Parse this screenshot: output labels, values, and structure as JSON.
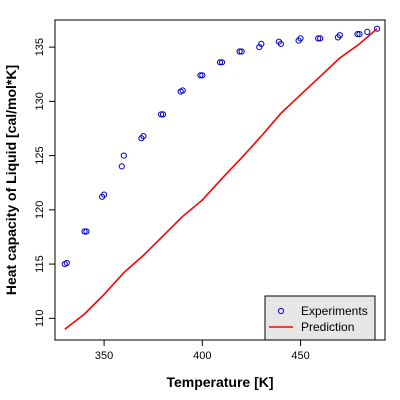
{
  "chart_data": {
    "type": "scatter",
    "title": "",
    "xlabel": "Temperature [K]",
    "ylabel": "Heat capacity of Liquid [cal/mol*K]",
    "xlim": [
      325,
      493
    ],
    "ylim": [
      108,
      137.5
    ],
    "x_ticks": [
      350,
      400,
      450
    ],
    "y_ticks": [
      110,
      115,
      120,
      125,
      130,
      135
    ],
    "grid": false,
    "legend_position": "bottom-right",
    "series": [
      {
        "name": "Experiments",
        "kind": "points",
        "marker": "open-circle",
        "color": "#0000CD",
        "x": [
          330,
          331,
          340,
          341,
          349,
          350,
          359,
          360,
          369,
          370,
          379,
          380,
          389,
          390,
          399,
          400,
          409,
          410,
          419,
          420,
          429,
          430,
          439,
          440,
          449,
          450,
          459,
          460,
          469,
          470,
          479,
          480,
          484,
          489
        ],
        "y": [
          115.0,
          115.1,
          118.0,
          118.0,
          121.2,
          121.4,
          124.0,
          125.0,
          126.6,
          126.8,
          128.8,
          128.8,
          130.9,
          131.0,
          132.4,
          132.4,
          133.6,
          133.6,
          134.6,
          134.6,
          135.0,
          135.3,
          135.5,
          135.3,
          135.6,
          135.8,
          135.8,
          135.8,
          135.9,
          136.1,
          136.2,
          136.2,
          136.4,
          136.7
        ]
      },
      {
        "name": "Prediction",
        "kind": "line",
        "color": "#FF0000",
        "x": [
          330,
          340,
          350,
          360,
          370,
          380,
          390,
          400,
          410,
          420,
          430,
          440,
          450,
          460,
          470,
          480,
          489
        ],
        "y": [
          109.0,
          110.4,
          112.2,
          114.2,
          115.8,
          117.6,
          119.4,
          120.9,
          122.9,
          124.8,
          126.8,
          128.9,
          130.6,
          132.3,
          134.0,
          135.3,
          136.7
        ]
      }
    ]
  }
}
